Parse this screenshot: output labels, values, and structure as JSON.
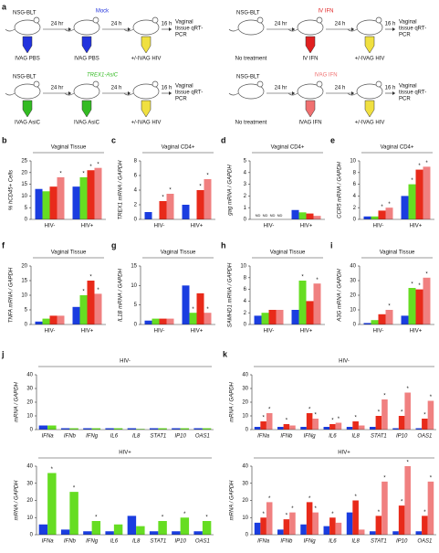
{
  "schematics": [
    {
      "panel": "a",
      "strain": "NSG-BLT",
      "treatment": "Mock",
      "treatment_color": "#2233dd",
      "steps": [
        "IVAG PBS",
        "IVAG PBS",
        "+/-IVAG HIV"
      ],
      "intervals": [
        "24 hr",
        "24 h",
        "16 h"
      ],
      "readout": [
        "Vaginal",
        "tissue qRT-",
        "PCR"
      ],
      "syringe_colors": [
        "#2233dd",
        "#2233dd",
        "#f0e040"
      ]
    },
    {
      "strain": "NSG-BLT",
      "treatment": "IV IFN",
      "treatment_color": "#e02020",
      "steps": [
        "No treatment",
        "IV IFN",
        "+/-IVAG HIV"
      ],
      "intervals": [
        "24 hr",
        "24 h",
        "16 h"
      ],
      "readout": [
        "Vaginal",
        "tissue qRT-",
        "PCR"
      ],
      "syringe_colors": [
        null,
        "#e02020",
        "#f0e040"
      ]
    },
    {
      "strain": "NSG-BLT",
      "treatment": "TREX1-AsiC",
      "treatment_color": "#33bb22",
      "steps": [
        "IVAG AsiC",
        "IVAG AsiC",
        "+/-IVAG HIV"
      ],
      "intervals": [
        "24 hr",
        "24 h",
        "16 h"
      ],
      "readout": [
        "Vaginal",
        "tissue qRT-",
        "PCR"
      ],
      "syringe_colors": [
        "#33bb22",
        "#33bb22",
        "#f0e040"
      ]
    },
    {
      "strain": "NSG-BLT",
      "treatment": "IVAG IFN",
      "treatment_color": "#f07070",
      "steps": [
        "No treatment",
        "IVAG IFN",
        "+/-IVAG HIV"
      ],
      "intervals": [
        "24 hr",
        "24 h",
        "16 h"
      ],
      "readout": [
        "Vaginal",
        "tissue qRT-",
        "PCR"
      ],
      "syringe_colors": [
        null,
        "#f07070",
        "#f0e040"
      ]
    }
  ],
  "chart_data": [
    {
      "type": "bar",
      "panel": "b",
      "title": "Vaginal Tissue",
      "y_label": "% hCD45+ Cells",
      "categories": [
        "HIV-",
        "HIV+"
      ],
      "ylim": [
        0,
        25
      ],
      "yticks": [
        0,
        5,
        10,
        15,
        20,
        25
      ],
      "series": [
        {
          "color": "#1a3de0",
          "values": [
            13,
            14
          ],
          "significance": [
            null,
            null
          ]
        },
        {
          "color": "#66dd22",
          "values": [
            12,
            18
          ],
          "significance": [
            null,
            "*"
          ]
        },
        {
          "color": "#e82a1a",
          "values": [
            14,
            21
          ],
          "significance": [
            null,
            "*"
          ]
        },
        {
          "color": "#f08080",
          "values": [
            18,
            22
          ],
          "significance": [
            "*",
            "*"
          ]
        }
      ]
    },
    {
      "type": "bar",
      "panel": "c",
      "title": "Vaginal CD4+",
      "y_label": "TREX1 mRNA / GAPDH",
      "categories": [
        "HIV-",
        "HIV+"
      ],
      "ylim": [
        0,
        8
      ],
      "yticks": [
        0,
        2,
        4,
        6,
        8
      ],
      "series": [
        {
          "color": "#1a3de0",
          "values": [
            1,
            2
          ],
          "significance": [
            null,
            null
          ]
        },
        {
          "color": "#66dd22",
          "values": [
            0,
            0
          ],
          "significance": [
            null,
            null
          ]
        },
        {
          "color": "#e82a1a",
          "values": [
            2.5,
            4
          ],
          "significance": [
            "*",
            "*"
          ]
        },
        {
          "color": "#f08080",
          "values": [
            3.5,
            5.5
          ],
          "significance": [
            "*",
            "*"
          ]
        }
      ]
    },
    {
      "type": "bar",
      "panel": "d",
      "title": "Vaginal CD4+",
      "y_label": "gag mRNA / GAPDH",
      "categories": [
        "HIV-",
        "HIV+"
      ],
      "ylim": [
        0,
        5
      ],
      "yticks": [
        0,
        1,
        2,
        3,
        4,
        5
      ],
      "series": [
        {
          "color": "#1a3de0",
          "values": [
            null,
            0.8
          ],
          "value_labels": [
            "ND",
            null
          ]
        },
        {
          "color": "#66dd22",
          "values": [
            null,
            0.6
          ],
          "value_labels": [
            "ND",
            null
          ]
        },
        {
          "color": "#e82a1a",
          "values": [
            null,
            0.5
          ],
          "value_labels": [
            "ND",
            null
          ]
        },
        {
          "color": "#f08080",
          "values": [
            null,
            0.3
          ],
          "value_labels": [
            "ND",
            null
          ]
        }
      ]
    },
    {
      "type": "bar",
      "panel": "e",
      "title": "Vaginal CD4+",
      "y_label": "CCR5 mRNA / GAPDH",
      "categories": [
        "HIV-",
        "HIV+"
      ],
      "ylim": [
        0,
        10
      ],
      "yticks": [
        0,
        2,
        4,
        6,
        8,
        10
      ],
      "series": [
        {
          "color": "#1a3de0",
          "values": [
            0.5,
            4
          ],
          "significance": [
            null,
            null
          ]
        },
        {
          "color": "#66dd22",
          "values": [
            0.5,
            6
          ],
          "significance": [
            null,
            "*"
          ]
        },
        {
          "color": "#e82a1a",
          "values": [
            1.5,
            8.5
          ],
          "significance": [
            "*",
            "*"
          ]
        },
        {
          "color": "#f08080",
          "values": [
            2,
            9
          ],
          "significance": [
            "*",
            "*"
          ]
        }
      ]
    },
    {
      "type": "bar",
      "panel": "f",
      "title": "Vaginal Tissue",
      "y_label": "TNFA mRNA / GAPDH",
      "categories": [
        "HIV-",
        "HIV+"
      ],
      "ylim": [
        0,
        20
      ],
      "yticks": [
        0,
        5,
        10,
        15,
        20
      ],
      "series": [
        {
          "color": "#1a3de0",
          "values": [
            1,
            6
          ],
          "significance": [
            null,
            null
          ]
        },
        {
          "color": "#66dd22",
          "values": [
            2,
            10
          ],
          "significance": [
            null,
            "*"
          ]
        },
        {
          "color": "#e82a1a",
          "values": [
            3,
            15
          ],
          "significance": [
            null,
            "*"
          ]
        },
        {
          "color": "#f08080",
          "values": [
            3,
            10.5
          ],
          "significance": [
            null,
            "*"
          ]
        }
      ]
    },
    {
      "type": "bar",
      "panel": "g",
      "title": "Vaginal Tissue",
      "y_label": "IL1B mRNA / GAPDH",
      "categories": [
        "HIV-",
        "HIV+"
      ],
      "ylim": [
        0,
        15
      ],
      "yticks": [
        0,
        5,
        10,
        15
      ],
      "series": [
        {
          "color": "#1a3de0",
          "values": [
            1,
            10
          ],
          "significance": [
            null,
            null
          ]
        },
        {
          "color": "#66dd22",
          "values": [
            1.5,
            3
          ],
          "significance": [
            null,
            "*"
          ]
        },
        {
          "color": "#e82a1a",
          "values": [
            1.5,
            8
          ],
          "significance": [
            null,
            null
          ]
        },
        {
          "color": "#f08080",
          "values": [
            1.5,
            3
          ],
          "significance": [
            null,
            "*"
          ]
        }
      ]
    },
    {
      "type": "bar",
      "panel": "h",
      "title": "Vaginal Tissue",
      "y_label": "SAMHD1 mRNA / GAPDH",
      "categories": [
        "HIV-",
        "HIV+"
      ],
      "ylim": [
        0,
        10
      ],
      "yticks": [
        0,
        2,
        4,
        6,
        8,
        10
      ],
      "series": [
        {
          "color": "#1a3de0",
          "values": [
            1.5,
            2.5
          ],
          "significance": [
            null,
            null
          ]
        },
        {
          "color": "#66dd22",
          "values": [
            2,
            7.5
          ],
          "significance": [
            null,
            "*"
          ]
        },
        {
          "color": "#e82a1a",
          "values": [
            2.5,
            4
          ],
          "significance": [
            null,
            null
          ]
        },
        {
          "color": "#f08080",
          "values": [
            2.5,
            7
          ],
          "significance": [
            null,
            "*"
          ]
        }
      ]
    },
    {
      "type": "bar",
      "panel": "i",
      "title": "Vaginal Tissue",
      "y_label": "A3G mRNA / GAPDH",
      "categories": [
        "HIV-",
        "HIV+"
      ],
      "ylim": [
        0,
        40
      ],
      "yticks": [
        0,
        10,
        20,
        30,
        40
      ],
      "series": [
        {
          "color": "#1a3de0",
          "values": [
            1,
            6
          ],
          "significance": [
            null,
            null
          ]
        },
        {
          "color": "#66dd22",
          "values": [
            3,
            25
          ],
          "significance": [
            null,
            "*"
          ]
        },
        {
          "color": "#e82a1a",
          "values": [
            7,
            24
          ],
          "significance": [
            null,
            "*"
          ]
        },
        {
          "color": "#f08080",
          "values": [
            10,
            32
          ],
          "significance": [
            "*",
            "*"
          ]
        }
      ]
    },
    {
      "type": "bar",
      "panel": "j",
      "title": "HIV-",
      "y_label": "mRNA / GAPDH",
      "categories": [
        "IFNa",
        "IFNb",
        "IFNg",
        "IL6",
        "IL8",
        "STAT1",
        "IP10",
        "OAS1"
      ],
      "ylim": [
        0,
        40
      ],
      "yticks": [
        0,
        10,
        20,
        30,
        40
      ],
      "series": [
        {
          "color": "#1a3de0",
          "values": [
            3,
            1,
            1,
            1,
            1,
            1,
            1,
            1
          ]
        },
        {
          "color": "#66dd22",
          "values": [
            3,
            1,
            1,
            1,
            0.5,
            1,
            1,
            1
          ]
        }
      ]
    },
    {
      "type": "bar",
      "title": "HIV+",
      "y_label": "mRNA / GAPDH",
      "categories": [
        "IFNa",
        "IFNb",
        "IFNg",
        "IL6",
        "IL8",
        "STAT1",
        "IP10",
        "OAS1"
      ],
      "ylim": [
        0,
        40
      ],
      "yticks": [
        0,
        10,
        20,
        30,
        40
      ],
      "series": [
        {
          "color": "#1a3de0",
          "values": [
            6,
            3,
            2,
            2,
            11,
            2,
            2,
            2
          ]
        },
        {
          "color": "#66dd22",
          "values": [
            36,
            25,
            8,
            6,
            5,
            8,
            10,
            8
          ],
          "significance": [
            "*",
            "*",
            "*",
            null,
            null,
            "*",
            "*",
            "*"
          ]
        }
      ]
    },
    {
      "type": "bar",
      "panel": "k",
      "title": "HIV-",
      "y_label": "mRNA / GAPDH",
      "categories": [
        "IFNa",
        "IFNb",
        "IFNg",
        "IL6",
        "IL8",
        "STAT1",
        "IP10",
        "OAS1"
      ],
      "ylim": [
        0,
        40
      ],
      "yticks": [
        0,
        10,
        20,
        30,
        40
      ],
      "series": [
        {
          "color": "#1a3de0",
          "values": [
            2,
            2,
            2,
            2,
            2,
            2,
            1,
            1
          ]
        },
        {
          "color": "#e82a1a",
          "values": [
            6,
            4,
            12,
            4,
            6,
            10,
            10,
            8
          ],
          "significance": [
            "*",
            "*",
            "*",
            "*",
            "*",
            "*",
            "*",
            "*"
          ]
        },
        {
          "color": "#f08080",
          "values": [
            12,
            3,
            8,
            5,
            3,
            22,
            27,
            21
          ],
          "significance": [
            "*",
            null,
            "*",
            "*",
            null,
            "*",
            "*",
            "*"
          ]
        }
      ]
    },
    {
      "type": "bar",
      "title": "HIV+",
      "y_label": "mRNA / GAPDH",
      "categories": [
        "IFNa",
        "IFNb",
        "IFNg",
        "IL6",
        "IL8",
        "STAT1",
        "IP10",
        "OAS1"
      ],
      "ylim": [
        0,
        40
      ],
      "yticks": [
        0,
        10,
        20,
        30,
        40
      ],
      "series": [
        {
          "color": "#1a3de0",
          "values": [
            7,
            3,
            6,
            5,
            13,
            2,
            2,
            2
          ]
        },
        {
          "color": "#e82a1a",
          "values": [
            10,
            9,
            19,
            10,
            20,
            11,
            17,
            11
          ],
          "significance": [
            "*",
            "*",
            "*",
            "*",
            "*",
            "*",
            "*",
            "*"
          ]
        },
        {
          "color": "#f08080",
          "values": [
            19,
            13,
            13,
            7,
            3,
            31,
            40,
            31
          ],
          "significance": [
            "*",
            "*",
            "*",
            null,
            null,
            "*",
            "*",
            "*"
          ]
        }
      ]
    }
  ]
}
